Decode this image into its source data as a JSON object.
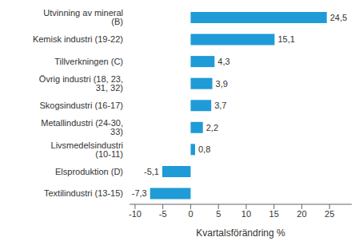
{
  "chart_data": {
    "type": "bar",
    "orientation": "horizontal",
    "categories": [
      "Utvinning av mineral (B)",
      "Kemisk industri (19-22)",
      "Tillverkningen (C)",
      "Övrig industri (18, 23, 31, 32)",
      "Skogsindustri (16-17)",
      "Metallindustri (24-30, 33)",
      "Livsmedelsindustri (10-11)",
      "Elsproduktion (D)",
      "Textilindustri (13-15)"
    ],
    "values": [
      24.5,
      15.1,
      4.3,
      3.9,
      3.7,
      2.2,
      0.8,
      -5.1,
      -7.3
    ],
    "value_labels": [
      "24,5",
      "15,1",
      "4,3",
      "3,9",
      "3,7",
      "2,2",
      "0,8",
      "-5,1",
      "-7,3"
    ],
    "data_labels": true,
    "color": "#1f9bd7",
    "x_label": "Kvartalsförändring %",
    "xlim": [
      -11,
      29
    ],
    "xticks": [
      -10,
      -5,
      0,
      5,
      10,
      15,
      20,
      25
    ],
    "grid": false
  }
}
